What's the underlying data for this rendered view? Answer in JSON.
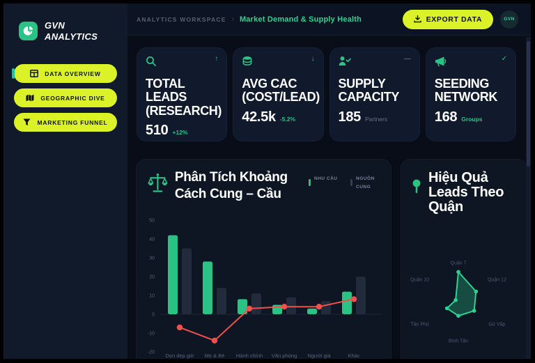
{
  "brand": {
    "line1": "GVN",
    "line2": "ANALYTICS"
  },
  "sidebar": {
    "items": [
      {
        "label": "DATA OVERVIEW",
        "icon": "grid-icon",
        "active": true
      },
      {
        "label": "GEOGRAPHIC DIVE",
        "icon": "map-icon",
        "active": false
      },
      {
        "label": "MARKETING FUNNEL",
        "icon": "funnel-icon",
        "active": false
      }
    ]
  },
  "header": {
    "workspace": "ANALYTICS WORKSPACE",
    "separator": "›",
    "page": "Market Demand & Supply Health",
    "export_label": "EXPORT DATA",
    "avatar": "GVN"
  },
  "kpis": [
    {
      "title": "TOTAL LEADS (RESEARCH)",
      "value": "510",
      "delta": "+12%",
      "delta_style": "green",
      "trend_glyph": "↑",
      "icon": "search-icon"
    },
    {
      "title": "AVG CAC (COST/LEAD)",
      "value": "42.5k",
      "delta": "-5.2%",
      "delta_style": "green",
      "trend_glyph": "↓",
      "icon": "coins-icon"
    },
    {
      "title": "SUPPLY CAPACITY",
      "value": "185",
      "delta": "Partners",
      "delta_style": "muted",
      "trend_glyph": "—",
      "icon": "user-check-icon"
    },
    {
      "title": "SEEDING NETWORK",
      "value": "168",
      "delta": "Groups",
      "delta_style": "green",
      "trend_glyph": "✓",
      "icon": "megaphone-icon"
    }
  ],
  "colors": {
    "lime": "#dcf228",
    "green": "#2bc286",
    "red": "#f1514a",
    "gray_bar": "#212b3c",
    "axis_text": "#59637a"
  },
  "chart_data": [
    {
      "type": "bar",
      "title": "Phân Tích Khoảng Cách Cung – Cầu",
      "categories": [
        "Dọn dẹp giờ",
        "Mẹ & Bé",
        "Hành chính",
        "Văn phòng",
        "Người già",
        "Khác"
      ],
      "series": [
        {
          "name": "NHU CẦU",
          "render": "bar",
          "color": "#2bc286",
          "values": [
            42,
            28,
            8,
            5,
            3,
            12
          ]
        },
        {
          "name": "NGUỒN CUNG",
          "render": "bar",
          "color": "#212b3c",
          "values": [
            35,
            14,
            11,
            9,
            7,
            20
          ]
        },
        {
          "name": "GAP",
          "render": "line",
          "color": "#f1514a",
          "values": [
            -7,
            -14,
            3,
            4,
            4,
            8
          ]
        }
      ],
      "ylim": [
        -20,
        50
      ],
      "yticks": [
        50,
        40,
        30,
        20,
        10,
        0,
        -10,
        -20
      ],
      "legend": [
        "NHU CẦU",
        "NGUỒN CUNG"
      ],
      "legend_position": "top-right",
      "grid": false
    },
    {
      "type": "radar",
      "title": "Hiệu Quả Leads Theo Quận",
      "categories": [
        "Quận 7",
        "Quận 12",
        "Gò Vấp",
        "Bình Tân",
        "Tân Phú",
        "Quận 10"
      ],
      "values": [
        95,
        65,
        58,
        45,
        42,
        10
      ],
      "max": 100,
      "color": "#2bd290"
    }
  ]
}
